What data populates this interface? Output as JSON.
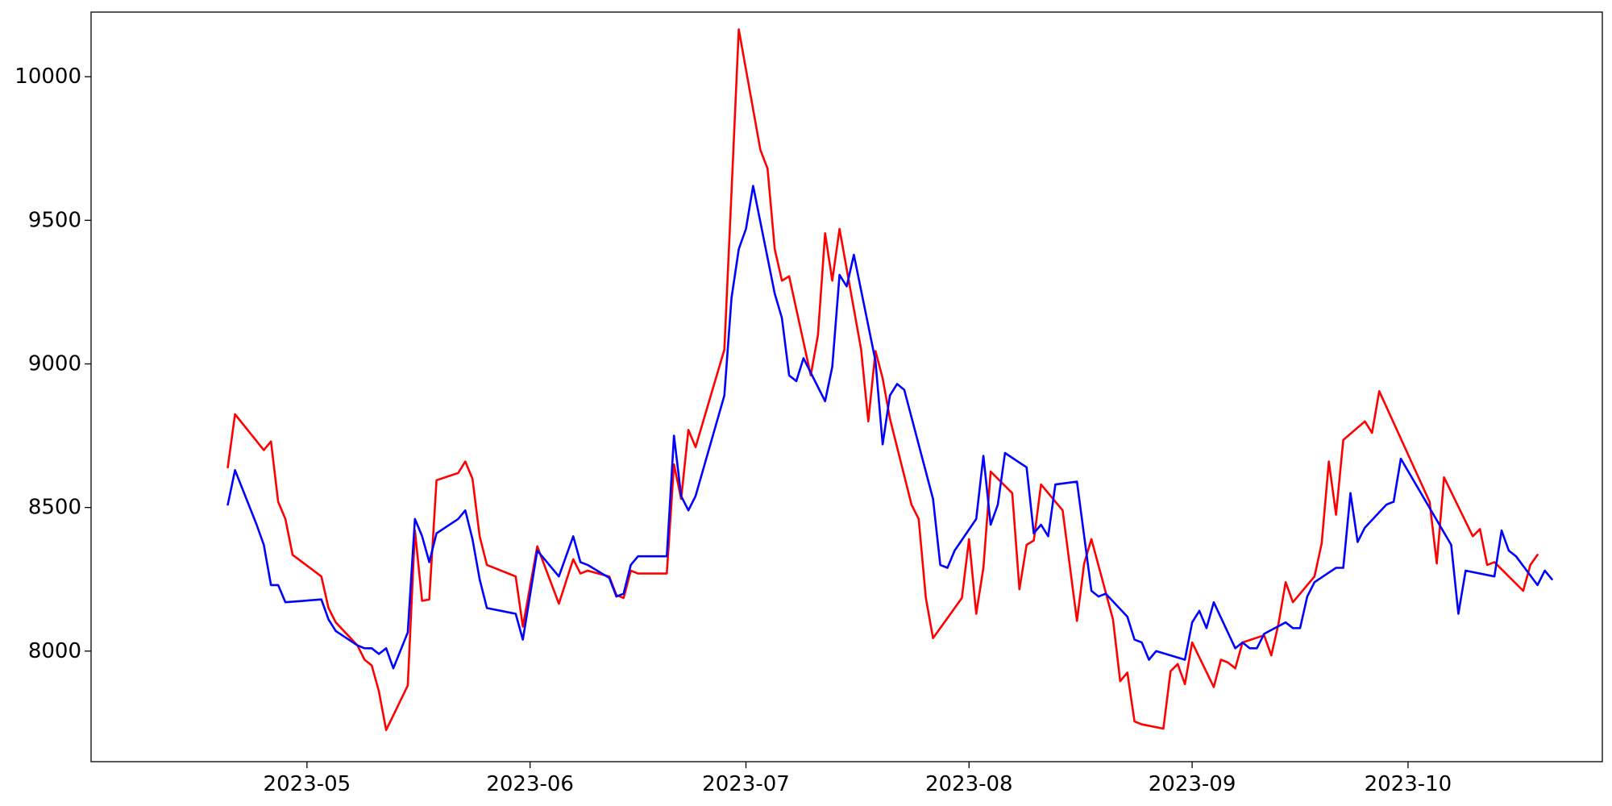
{
  "chart_data": {
    "type": "line",
    "title": "",
    "xlabel": "",
    "ylabel": "",
    "x_axis": {
      "type": "date",
      "range": [
        "2023-04-01",
        "2023-10-28"
      ],
      "ticks": [
        {
          "date": "2023-05-01",
          "label": "2023-05"
        },
        {
          "date": "2023-06-01",
          "label": "2023-06"
        },
        {
          "date": "2023-07-01",
          "label": "2023-07"
        },
        {
          "date": "2023-08-01",
          "label": "2023-08"
        },
        {
          "date": "2023-09-01",
          "label": "2023-09"
        },
        {
          "date": "2023-10-01",
          "label": "2023-10"
        }
      ]
    },
    "y_axis": {
      "range": [
        7615,
        10225
      ],
      "ticks": [
        8000,
        8500,
        9000,
        9500,
        10000
      ]
    },
    "grid": false,
    "legend": "none",
    "series": [
      {
        "color": "#ff0000",
        "points": [
          [
            "2023-04-20",
            8640
          ],
          [
            "2023-04-21",
            8825
          ],
          [
            "2023-04-25",
            8700
          ],
          [
            "2023-04-26",
            8730
          ],
          [
            "2023-04-27",
            8520
          ],
          [
            "2023-04-28",
            8460
          ],
          [
            "2023-04-29",
            8335
          ],
          [
            "2023-05-03",
            8260
          ],
          [
            "2023-05-04",
            8150
          ],
          [
            "2023-05-05",
            8100
          ],
          [
            "2023-05-08",
            8020
          ],
          [
            "2023-05-09",
            7970
          ],
          [
            "2023-05-10",
            7950
          ],
          [
            "2023-05-11",
            7860
          ],
          [
            "2023-05-12",
            7725
          ],
          [
            "2023-05-15",
            7880
          ],
          [
            "2023-05-16",
            8420
          ],
          [
            "2023-05-17",
            8175
          ],
          [
            "2023-05-18",
            8180
          ],
          [
            "2023-05-19",
            8595
          ],
          [
            "2023-05-22",
            8620
          ],
          [
            "2023-05-23",
            8660
          ],
          [
            "2023-05-24",
            8600
          ],
          [
            "2023-05-25",
            8400
          ],
          [
            "2023-05-26",
            8300
          ],
          [
            "2023-05-30",
            8260
          ],
          [
            "2023-05-31",
            8085
          ],
          [
            "2023-06-02",
            8365
          ],
          [
            "2023-06-05",
            8165
          ],
          [
            "2023-06-07",
            8320
          ],
          [
            "2023-06-08",
            8270
          ],
          [
            "2023-06-09",
            8280
          ],
          [
            "2023-06-12",
            8260
          ],
          [
            "2023-06-13",
            8195
          ],
          [
            "2023-06-14",
            8185
          ],
          [
            "2023-06-15",
            8280
          ],
          [
            "2023-06-16",
            8270
          ],
          [
            "2023-06-20",
            8270
          ],
          [
            "2023-06-21",
            8650
          ],
          [
            "2023-06-22",
            8530
          ],
          [
            "2023-06-23",
            8770
          ],
          [
            "2023-06-24",
            8710
          ],
          [
            "2023-06-28",
            9050
          ],
          [
            "2023-06-29",
            9600
          ],
          [
            "2023-06-30",
            10165
          ],
          [
            "2023-07-03",
            9745
          ],
          [
            "2023-07-04",
            9680
          ],
          [
            "2023-07-05",
            9400
          ],
          [
            "2023-07-06",
            9290
          ],
          [
            "2023-07-07",
            9305
          ],
          [
            "2023-07-10",
            8960
          ],
          [
            "2023-07-11",
            9100
          ],
          [
            "2023-07-12",
            9455
          ],
          [
            "2023-07-13",
            9290
          ],
          [
            "2023-07-14",
            9470
          ],
          [
            "2023-07-17",
            9050
          ],
          [
            "2023-07-18",
            8800
          ],
          [
            "2023-07-19",
            9045
          ],
          [
            "2023-07-20",
            8950
          ],
          [
            "2023-07-21",
            8810
          ],
          [
            "2023-07-24",
            8510
          ],
          [
            "2023-07-25",
            8460
          ],
          [
            "2023-07-26",
            8185
          ],
          [
            "2023-07-27",
            8045
          ],
          [
            "2023-07-28",
            8080
          ],
          [
            "2023-07-31",
            8185
          ],
          [
            "2023-08-01",
            8390
          ],
          [
            "2023-08-02",
            8130
          ],
          [
            "2023-08-03",
            8290
          ],
          [
            "2023-08-04",
            8625
          ],
          [
            "2023-08-07",
            8550
          ],
          [
            "2023-08-08",
            8215
          ],
          [
            "2023-08-09",
            8370
          ],
          [
            "2023-08-10",
            8385
          ],
          [
            "2023-08-11",
            8580
          ],
          [
            "2023-08-14",
            8490
          ],
          [
            "2023-08-16",
            8105
          ],
          [
            "2023-08-17",
            8305
          ],
          [
            "2023-08-18",
            8390
          ],
          [
            "2023-08-21",
            8110
          ],
          [
            "2023-08-22",
            7895
          ],
          [
            "2023-08-23",
            7925
          ],
          [
            "2023-08-24",
            7755
          ],
          [
            "2023-08-25",
            7745
          ],
          [
            "2023-08-28",
            7730
          ],
          [
            "2023-08-29",
            7930
          ],
          [
            "2023-08-30",
            7955
          ],
          [
            "2023-08-31",
            7885
          ],
          [
            "2023-09-01",
            8030
          ],
          [
            "2023-09-04",
            7875
          ],
          [
            "2023-09-05",
            7970
          ],
          [
            "2023-09-06",
            7960
          ],
          [
            "2023-09-07",
            7940
          ],
          [
            "2023-09-08",
            8030
          ],
          [
            "2023-09-11",
            8055
          ],
          [
            "2023-09-12",
            7985
          ],
          [
            "2023-09-13",
            8095
          ],
          [
            "2023-09-14",
            8240
          ],
          [
            "2023-09-15",
            8170
          ],
          [
            "2023-09-18",
            8260
          ],
          [
            "2023-09-19",
            8375
          ],
          [
            "2023-09-20",
            8660
          ],
          [
            "2023-09-21",
            8475
          ],
          [
            "2023-09-22",
            8735
          ],
          [
            "2023-09-25",
            8800
          ],
          [
            "2023-09-26",
            8760
          ],
          [
            "2023-09-27",
            8905
          ],
          [
            "2023-10-04",
            8520
          ],
          [
            "2023-10-05",
            8305
          ],
          [
            "2023-10-06",
            8605
          ],
          [
            "2023-10-10",
            8400
          ],
          [
            "2023-10-11",
            8425
          ],
          [
            "2023-10-12",
            8300
          ],
          [
            "2023-10-13",
            8310
          ],
          [
            "2023-10-17",
            8210
          ],
          [
            "2023-10-18",
            8300
          ],
          [
            "2023-10-19",
            8335
          ]
        ]
      },
      {
        "color": "#0000ff",
        "points": [
          [
            "2023-04-20",
            8510
          ],
          [
            "2023-04-21",
            8630
          ],
          [
            "2023-04-24",
            8440
          ],
          [
            "2023-04-25",
            8370
          ],
          [
            "2023-04-26",
            8230
          ],
          [
            "2023-04-27",
            8230
          ],
          [
            "2023-04-28",
            8170
          ],
          [
            "2023-05-03",
            8180
          ],
          [
            "2023-05-04",
            8110
          ],
          [
            "2023-05-05",
            8070
          ],
          [
            "2023-05-08",
            8020
          ],
          [
            "2023-05-09",
            8010
          ],
          [
            "2023-05-10",
            8010
          ],
          [
            "2023-05-11",
            7990
          ],
          [
            "2023-05-12",
            8010
          ],
          [
            "2023-05-13",
            7940
          ],
          [
            "2023-05-15",
            8065
          ],
          [
            "2023-05-16",
            8460
          ],
          [
            "2023-05-17",
            8400
          ],
          [
            "2023-05-18",
            8310
          ],
          [
            "2023-05-19",
            8410
          ],
          [
            "2023-05-22",
            8460
          ],
          [
            "2023-05-23",
            8490
          ],
          [
            "2023-05-24",
            8390
          ],
          [
            "2023-05-25",
            8250
          ],
          [
            "2023-05-26",
            8150
          ],
          [
            "2023-05-30",
            8130
          ],
          [
            "2023-05-31",
            8040
          ],
          [
            "2023-06-02",
            8350
          ],
          [
            "2023-06-05",
            8260
          ],
          [
            "2023-06-07",
            8400
          ],
          [
            "2023-06-08",
            8310
          ],
          [
            "2023-06-09",
            8300
          ],
          [
            "2023-06-12",
            8255
          ],
          [
            "2023-06-13",
            8190
          ],
          [
            "2023-06-14",
            8200
          ],
          [
            "2023-06-15",
            8300
          ],
          [
            "2023-06-16",
            8330
          ],
          [
            "2023-06-20",
            8330
          ],
          [
            "2023-06-21",
            8750
          ],
          [
            "2023-06-22",
            8540
          ],
          [
            "2023-06-23",
            8490
          ],
          [
            "2023-06-24",
            8540
          ],
          [
            "2023-06-28",
            8890
          ],
          [
            "2023-06-29",
            9230
          ],
          [
            "2023-06-30",
            9400
          ],
          [
            "2023-07-01",
            9470
          ],
          [
            "2023-07-02",
            9620
          ],
          [
            "2023-07-05",
            9245
          ],
          [
            "2023-07-06",
            9160
          ],
          [
            "2023-07-07",
            8960
          ],
          [
            "2023-07-08",
            8940
          ],
          [
            "2023-07-09",
            9020
          ],
          [
            "2023-07-12",
            8870
          ],
          [
            "2023-07-13",
            8990
          ],
          [
            "2023-07-14",
            9310
          ],
          [
            "2023-07-15",
            9270
          ],
          [
            "2023-07-16",
            9380
          ],
          [
            "2023-07-19",
            9010
          ],
          [
            "2023-07-20",
            8720
          ],
          [
            "2023-07-21",
            8890
          ],
          [
            "2023-07-22",
            8930
          ],
          [
            "2023-07-23",
            8910
          ],
          [
            "2023-07-27",
            8530
          ],
          [
            "2023-07-28",
            8300
          ],
          [
            "2023-07-29",
            8290
          ],
          [
            "2023-07-30",
            8350
          ],
          [
            "2023-08-02",
            8460
          ],
          [
            "2023-08-03",
            8680
          ],
          [
            "2023-08-04",
            8440
          ],
          [
            "2023-08-05",
            8510
          ],
          [
            "2023-08-06",
            8690
          ],
          [
            "2023-08-09",
            8640
          ],
          [
            "2023-08-10",
            8410
          ],
          [
            "2023-08-11",
            8440
          ],
          [
            "2023-08-12",
            8400
          ],
          [
            "2023-08-13",
            8580
          ],
          [
            "2023-08-16",
            8590
          ],
          [
            "2023-08-18",
            8210
          ],
          [
            "2023-08-19",
            8190
          ],
          [
            "2023-08-20",
            8200
          ],
          [
            "2023-08-23",
            8120
          ],
          [
            "2023-08-24",
            8040
          ],
          [
            "2023-08-25",
            8030
          ],
          [
            "2023-08-26",
            7970
          ],
          [
            "2023-08-27",
            8000
          ],
          [
            "2023-08-31",
            7970
          ],
          [
            "2023-09-01",
            8100
          ],
          [
            "2023-09-02",
            8140
          ],
          [
            "2023-09-03",
            8080
          ],
          [
            "2023-09-04",
            8170
          ],
          [
            "2023-09-07",
            8010
          ],
          [
            "2023-09-08",
            8030
          ],
          [
            "2023-09-09",
            8010
          ],
          [
            "2023-09-10",
            8010
          ],
          [
            "2023-09-11",
            8060
          ],
          [
            "2023-09-14",
            8100
          ],
          [
            "2023-09-15",
            8080
          ],
          [
            "2023-09-16",
            8080
          ],
          [
            "2023-09-17",
            8190
          ],
          [
            "2023-09-18",
            8240
          ],
          [
            "2023-09-21",
            8290
          ],
          [
            "2023-09-22",
            8290
          ],
          [
            "2023-09-23",
            8550
          ],
          [
            "2023-09-24",
            8380
          ],
          [
            "2023-09-25",
            8430
          ],
          [
            "2023-09-28",
            8510
          ],
          [
            "2023-09-29",
            8520
          ],
          [
            "2023-09-30",
            8670
          ],
          [
            "2023-10-07",
            8370
          ],
          [
            "2023-10-08",
            8130
          ],
          [
            "2023-10-09",
            8280
          ],
          [
            "2023-10-13",
            8260
          ],
          [
            "2023-10-14",
            8420
          ],
          [
            "2023-10-15",
            8350
          ],
          [
            "2023-10-16",
            8330
          ],
          [
            "2023-10-19",
            8230
          ],
          [
            "2023-10-20",
            8280
          ],
          [
            "2023-10-21",
            8250
          ]
        ]
      }
    ]
  }
}
